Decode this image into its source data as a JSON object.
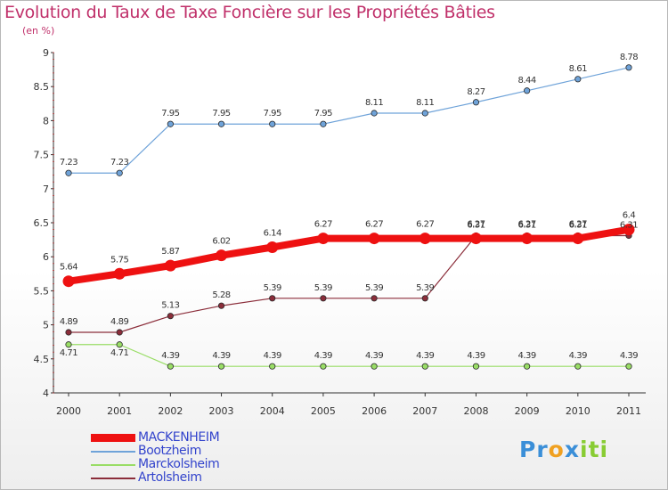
{
  "chart_data": {
    "type": "line",
    "title": "Evolution du Taux de Taxe Foncière sur les Propriétés Bâties",
    "subtitle": "(en %)",
    "xlabel": "",
    "ylabel": "",
    "ylim": [
      4,
      9
    ],
    "yticks": [
      "4",
      "4.5",
      "5",
      "5.5",
      "6",
      "6.5",
      "7",
      "7.5",
      "8",
      "8.5",
      "9"
    ],
    "categories": [
      "2000",
      "2001",
      "2002",
      "2003",
      "2004",
      "2005",
      "2006",
      "2007",
      "2008",
      "2009",
      "2010",
      "2011"
    ],
    "grid": false,
    "legend_position": "bottom-left",
    "series": [
      {
        "name": "MACKENHEIM",
        "color": "#ee1111",
        "values": [
          5.64,
          5.75,
          5.87,
          6.02,
          6.14,
          6.27,
          6.27,
          6.27,
          6.27,
          6.27,
          6.27,
          6.4
        ],
        "labels": [
          "5.64",
          "5.75",
          "5.87",
          "6.02",
          "6.14",
          "6.27",
          "6.27",
          "6.27",
          "6.27",
          "6.27",
          "6.27",
          "6.4"
        ]
      },
      {
        "name": "Bootzheim",
        "color": "#6fa3d9",
        "values": [
          7.23,
          7.23,
          7.95,
          7.95,
          7.95,
          7.95,
          8.11,
          8.11,
          8.27,
          8.44,
          8.61,
          8.78
        ],
        "labels": [
          "7.23",
          "7.23",
          "7.95",
          "7.95",
          "7.95",
          "7.95",
          "8.11",
          "8.11",
          "8.27",
          "8.44",
          "8.61",
          "8.78"
        ]
      },
      {
        "name": "Marckolsheim",
        "color": "#99dd66",
        "values": [
          4.71,
          4.71,
          4.39,
          4.39,
          4.39,
          4.39,
          4.39,
          4.39,
          4.39,
          4.39,
          4.39,
          4.39
        ],
        "labels": [
          "4.71",
          "4.71",
          "4.39",
          "4.39",
          "4.39",
          "4.39",
          "4.39",
          "4.39",
          "4.39",
          "4.39",
          "4.39",
          "4.39"
        ]
      },
      {
        "name": "Artolsheim",
        "color": "#8b2d3a",
        "values": [
          4.89,
          4.89,
          5.13,
          5.28,
          5.39,
          5.39,
          5.39,
          5.39,
          6.31,
          6.31,
          6.31,
          6.31
        ],
        "labels": [
          "4.89",
          "4.89",
          "5.13",
          "5.28",
          "5.39",
          "5.39",
          "5.39",
          "5.39",
          "6.31",
          "6.31",
          "6.31",
          "6.31"
        ]
      }
    ]
  },
  "logo": {
    "letters": [
      "P",
      "r",
      "o",
      "x",
      "i",
      "t",
      "i"
    ],
    "colors": [
      "#3b8fd8",
      "#3b8fd8",
      "#f0a020",
      "#3b8fd8",
      "#88cc33",
      "#88cc33",
      "#88cc33"
    ]
  }
}
